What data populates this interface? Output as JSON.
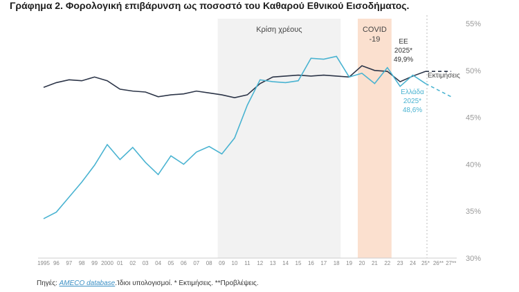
{
  "title": "Γράφημα 2. Φορολογική επιβάρυνση ως ποσοστό του Καθαρού Εθνικού Εισοδήματος.",
  "source": {
    "prefix": "Πηγές: ",
    "link": "AMECO database",
    "rest": ".Ίδιοι υπολογισμοί. * Εκτιμήσεις. **Προβλέψεις."
  },
  "chart_data": {
    "type": "line",
    "title": "Γράφημα 2. Φορολογική επιβάρυνση ως ποσοστό του Καθαρού Εθνικού Εισοδήματος.",
    "x_tick_labels": [
      "1995",
      "96",
      "97",
      "98",
      "99",
      "2000",
      "01",
      "02",
      "03",
      "04",
      "05",
      "06",
      "07",
      "08",
      "09",
      "10",
      "11",
      "12",
      "13",
      "14",
      "15",
      "16",
      "17",
      "18",
      "19",
      "20",
      "21",
      "22",
      "23",
      "24",
      "25*",
      "26**",
      "27**"
    ],
    "years": [
      1995,
      1996,
      1997,
      1998,
      1999,
      2000,
      2001,
      2002,
      2003,
      2004,
      2005,
      2006,
      2007,
      2008,
      2009,
      2010,
      2011,
      2012,
      2013,
      2014,
      2015,
      2016,
      2017,
      2018,
      2019,
      2020,
      2021,
      2022,
      2023,
      2024,
      2025,
      2026,
      2027
    ],
    "ylim": [
      30,
      55
    ],
    "y_ticks": [
      "30%",
      "35%",
      "40%",
      "45%",
      "50%",
      "55%"
    ],
    "y_tick_values": [
      30,
      35,
      40,
      45,
      50,
      55
    ],
    "grid": false,
    "series": [
      {
        "name": "ΕΕ",
        "color": "#2b3447",
        "values": [
          48.2,
          48.7,
          49.0,
          48.9,
          49.3,
          48.9,
          48.0,
          47.8,
          47.7,
          47.2,
          47.4,
          47.5,
          47.8,
          47.6,
          47.4,
          47.1,
          47.4,
          48.6,
          49.3,
          49.4,
          49.5,
          49.4,
          49.5,
          49.4,
          49.3,
          50.5,
          50.0,
          49.9,
          48.8,
          49.4,
          49.9,
          49.9,
          49.9
        ],
        "dashed_from": 2025
      },
      {
        "name": "Ελλάδα",
        "color": "#49b3d1",
        "values": [
          34.2,
          34.9,
          36.5,
          38.1,
          39.9,
          42.1,
          40.5,
          41.8,
          40.2,
          38.9,
          40.9,
          40.0,
          41.3,
          41.9,
          41.1,
          42.8,
          46.3,
          49.0,
          48.8,
          48.7,
          48.9,
          51.3,
          51.2,
          51.5,
          49.3,
          49.7,
          48.6,
          50.3,
          48.3,
          49.5,
          48.6,
          47.9,
          47.2
        ],
        "dashed_from": 2025
      }
    ],
    "shaded_periods": [
      {
        "label": "Κρίση χρέους",
        "from": 2009,
        "to": 2018,
        "color": "#f2f2f2"
      },
      {
        "label": "COVID\n-19",
        "label_lines": [
          "COVID",
          "-19"
        ],
        "from": 2020,
        "to": 2022,
        "color": "#fbe0cf"
      }
    ],
    "vertical_marker": {
      "at": 2025,
      "label": "Εκτιμήσεις"
    },
    "annotations": {
      "eu": [
        "ΕΕ",
        "2025*",
        "49,9%"
      ],
      "greece": [
        "Ελλάδα",
        "2025*",
        "48,6%"
      ]
    }
  }
}
